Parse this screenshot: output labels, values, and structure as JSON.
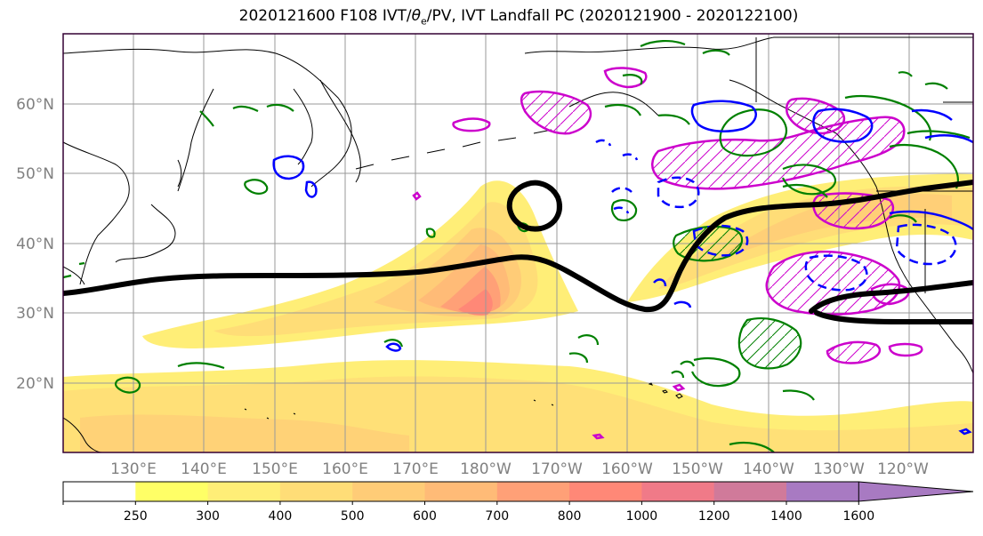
{
  "title": {
    "prefix": "2020121600 F108 IVT/",
    "theta": "θ",
    "theta_sub": "e",
    "suffix": "/PV, IVT Landfall PC (2020121900 - 2020122100)"
  },
  "lat_labels": [
    "60°N",
    "50°N",
    "40°N",
    "30°N",
    "20°N"
  ],
  "lon_labels": [
    "130°E",
    "140°E",
    "150°E",
    "160°E",
    "170°E",
    "180°W",
    "170°W",
    "160°W",
    "150°W",
    "140°W",
    "130°W",
    "120°W"
  ],
  "colorbar": {
    "levels": [
      "250",
      "300",
      "400",
      "500",
      "600",
      "700",
      "800",
      "1000",
      "1200",
      "1400",
      "1600"
    ],
    "colors": [
      "#ffffff",
      "#ffff66",
      "#ffee77",
      "#ffdd77",
      "#ffcc77",
      "#ffbb77",
      "#ffa077",
      "#ff8877",
      "#f07a88",
      "#d07a9a",
      "#a87ac2"
    ]
  },
  "colors": {
    "coast": "#000000",
    "pv_contour": "#008000",
    "theta_e_solid": "#0000ff",
    "theta_e_dashed": "#0000ff",
    "ivt_pc_contour": "#cc00cc",
    "landfall_pc_line": "#000000",
    "grid": "#999999",
    "map_frame": "#330033"
  }
}
